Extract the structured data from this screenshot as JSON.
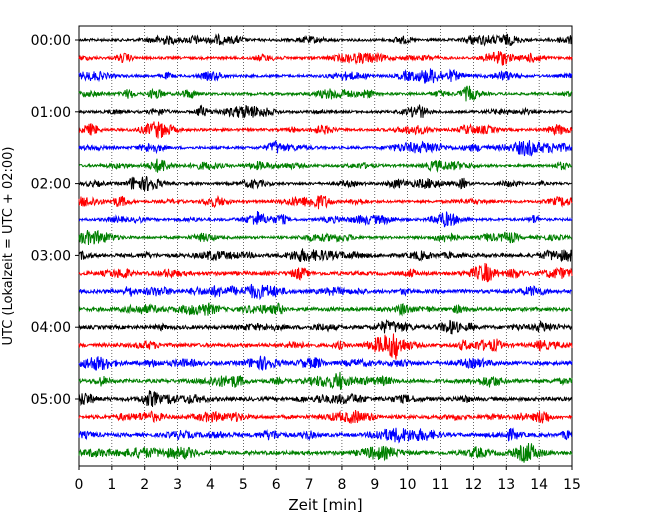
{
  "chart_data": {
    "type": "line",
    "title": "",
    "xlabel": "Zeit  [min]",
    "ylabel": "UTC (Lokalzeit = UTC + 02:00)",
    "xlim": [
      0,
      15
    ],
    "x_ticks": [
      "0",
      "1",
      "2",
      "3",
      "4",
      "5",
      "6",
      "7",
      "8",
      "9",
      "10",
      "11",
      "12",
      "13",
      "14",
      "15"
    ],
    "y_ticks": [
      "00:00",
      "01:00",
      "02:00",
      "03:00",
      "04:00",
      "05:00"
    ],
    "grid": "vertical dotted at each minute",
    "trace_count": 24,
    "trace_interval_min": 15,
    "trace_colors": [
      "#000000",
      "#ff0000",
      "#0000ff",
      "#008000"
    ],
    "events": [
      {
        "trace_index": 17,
        "time_min": 9.6,
        "description": "spike"
      }
    ]
  }
}
